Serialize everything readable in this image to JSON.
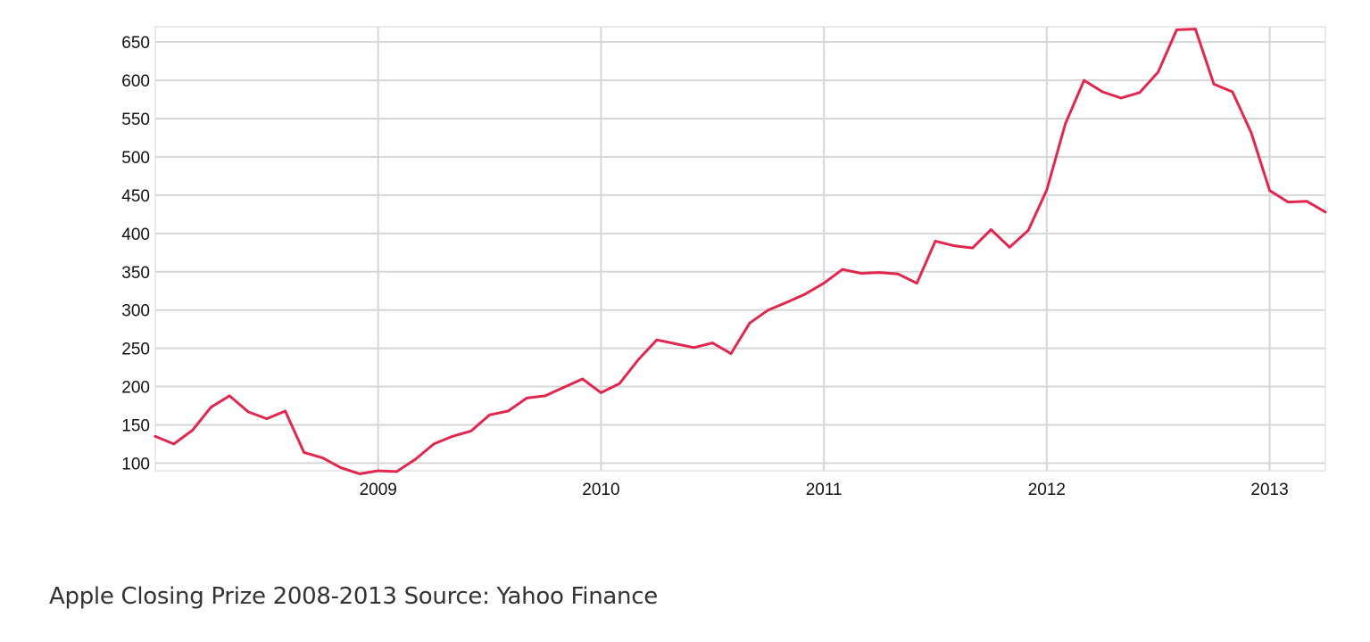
{
  "caption": "Apple Closing Prize 2008-2013 Source: Yahoo Finance",
  "chart_data": {
    "type": "line",
    "title": "",
    "xlabel": "",
    "ylabel": "",
    "x_unit": "year",
    "xlim": [
      2008.0,
      2013.25
    ],
    "ylim": [
      90,
      670
    ],
    "yticks": [
      100,
      150,
      200,
      250,
      300,
      350,
      400,
      450,
      500,
      550,
      600,
      650
    ],
    "xticks": [
      2009,
      2010,
      2011,
      2012,
      2013
    ],
    "grid": true,
    "legend": "none",
    "line_color": "#e0274f",
    "series": [
      {
        "x": [
          2008.0,
          2008.083,
          2008.167,
          2008.25,
          2008.333,
          2008.417,
          2008.5,
          2008.583,
          2008.667,
          2008.75,
          2008.833,
          2008.917,
          2009.0,
          2009.083,
          2009.167,
          2009.25,
          2009.333,
          2009.417,
          2009.5,
          2009.583,
          2009.667,
          2009.75,
          2009.833,
          2009.917,
          2010.0,
          2010.083,
          2010.167,
          2010.25,
          2010.333,
          2010.417,
          2010.5,
          2010.583,
          2010.667,
          2010.75,
          2010.833,
          2010.917,
          2011.0,
          2011.083,
          2011.167,
          2011.25,
          2011.333,
          2011.417,
          2011.5,
          2011.583,
          2011.667,
          2011.75,
          2011.833,
          2011.917,
          2012.0,
          2012.083,
          2012.167,
          2012.25,
          2012.333,
          2012.417,
          2012.5,
          2012.583,
          2012.667,
          2012.75,
          2012.833,
          2012.917,
          2013.0,
          2013.083,
          2013.167,
          2013.25
        ],
        "y": [
          135,
          125,
          143,
          173,
          188,
          167,
          158,
          168,
          114,
          107,
          94,
          86,
          90,
          89,
          105,
          125,
          135,
          142,
          163,
          168,
          185,
          188,
          199,
          210,
          192,
          204,
          235,
          261,
          256,
          251,
          257,
          243,
          283,
          300,
          310,
          321,
          335,
          353,
          348,
          349,
          347,
          335,
          390,
          384,
          381,
          405,
          382,
          404,
          457,
          543,
          600,
          585,
          577,
          584,
          611,
          666,
          667,
          595,
          585,
          532,
          456,
          441,
          442,
          428
        ]
      }
    ]
  }
}
